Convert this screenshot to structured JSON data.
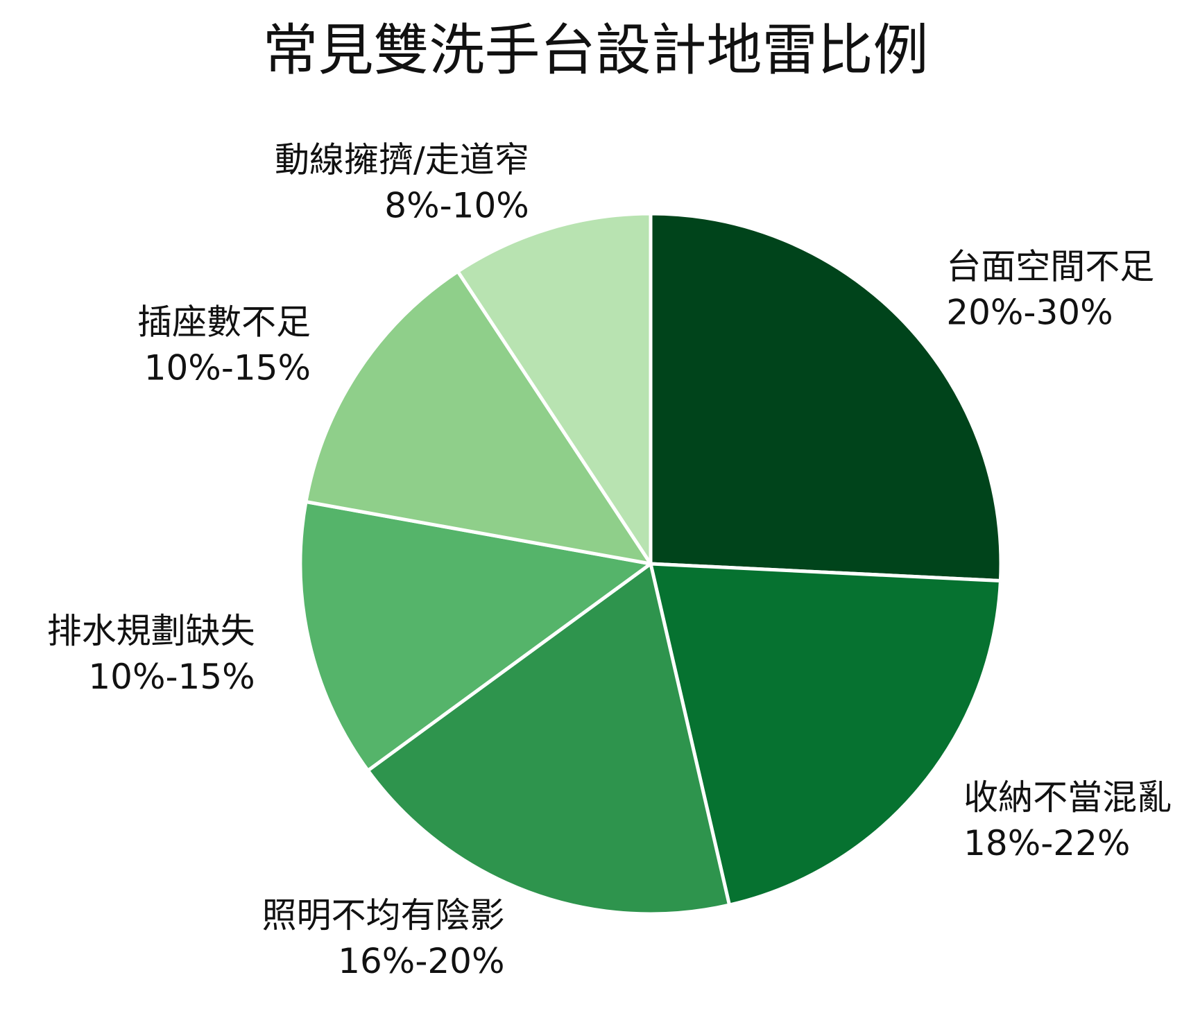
{
  "chart_data": {
    "type": "pie",
    "title": "常見雙洗手台設計地雷比例",
    "start_angle_deg": 0,
    "direction": "clockwise",
    "slices": [
      {
        "label": "台面空間不足",
        "value_label": "20%-30%",
        "value": 25,
        "color": "#00441b"
      },
      {
        "label": "收納不當混亂",
        "value_label": "18%-22%",
        "value": 20,
        "color": "#067230"
      },
      {
        "label": "照明不均有陰影",
        "value_label": "16%-20%",
        "value": 18,
        "color": "#2e944d"
      },
      {
        "label": "排水規劃缺失",
        "value_label": "10%-15%",
        "value": 12.5,
        "color": "#55b46a"
      },
      {
        "label": "插座數不足",
        "value_label": "10%-15%",
        "value": 12.5,
        "color": "#8fcf8a"
      },
      {
        "label": "動線擁擠/走道窄",
        "value_label": "8%-10%",
        "value": 9,
        "color": "#b8e3b1"
      }
    ]
  }
}
